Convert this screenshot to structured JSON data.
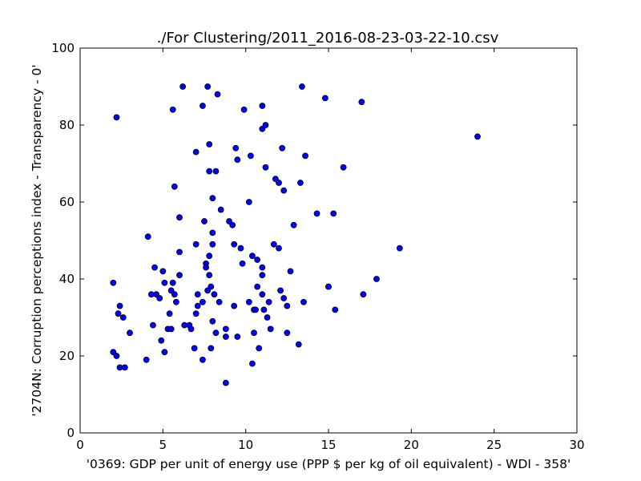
{
  "chart_data": {
    "type": "scatter",
    "title": "./For Clustering/2011_2016-08-23-03-22-10.csv",
    "xlabel": "'0369: GDP per unit of energy use  (PPP $ per kg of oil equivalent) - WDI - 358'",
    "ylabel": "'2704N: Corruption perceptions index - Transparency - 0'",
    "xlim": [
      0,
      30
    ],
    "ylim": [
      0,
      100
    ],
    "xticks": [
      0,
      5,
      10,
      15,
      20,
      25,
      30
    ],
    "yticks": [
      0,
      20,
      40,
      60,
      80,
      100
    ],
    "grid": false,
    "marker_color": "#0000ff",
    "series": [
      {
        "points": [
          [
            2.0,
            21
          ],
          [
            2.0,
            39
          ],
          [
            2.2,
            82
          ],
          [
            2.2,
            20
          ],
          [
            2.3,
            31
          ],
          [
            2.4,
            17
          ],
          [
            2.4,
            33
          ],
          [
            2.6,
            30
          ],
          [
            2.7,
            17
          ],
          [
            3.0,
            26
          ],
          [
            4.0,
            19
          ],
          [
            4.1,
            51
          ],
          [
            4.3,
            36
          ],
          [
            4.4,
            28
          ],
          [
            4.5,
            43
          ],
          [
            4.6,
            36
          ],
          [
            4.8,
            35
          ],
          [
            4.9,
            24
          ],
          [
            5.0,
            42
          ],
          [
            5.1,
            39
          ],
          [
            5.1,
            21
          ],
          [
            5.3,
            27
          ],
          [
            5.4,
            31
          ],
          [
            5.5,
            27
          ],
          [
            5.5,
            37
          ],
          [
            5.6,
            84
          ],
          [
            5.6,
            39
          ],
          [
            5.7,
            36
          ],
          [
            5.7,
            64
          ],
          [
            5.8,
            34
          ],
          [
            6.0,
            56
          ],
          [
            6.0,
            41
          ],
          [
            6.0,
            47
          ],
          [
            6.2,
            90
          ],
          [
            6.3,
            28
          ],
          [
            6.6,
            28
          ],
          [
            6.7,
            27
          ],
          [
            6.9,
            22
          ],
          [
            7.0,
            49
          ],
          [
            7.0,
            73
          ],
          [
            7.0,
            31
          ],
          [
            7.1,
            33
          ],
          [
            7.1,
            36
          ],
          [
            7.4,
            85
          ],
          [
            7.4,
            19
          ],
          [
            7.4,
            34
          ],
          [
            7.5,
            55
          ],
          [
            7.6,
            44
          ],
          [
            7.6,
            43
          ],
          [
            7.7,
            90
          ],
          [
            7.7,
            37
          ],
          [
            7.8,
            75
          ],
          [
            7.8,
            68
          ],
          [
            7.8,
            46
          ],
          [
            7.8,
            41
          ],
          [
            7.9,
            22
          ],
          [
            7.9,
            38
          ],
          [
            8.0,
            61
          ],
          [
            8.0,
            52
          ],
          [
            8.0,
            49
          ],
          [
            8.0,
            29
          ],
          [
            8.1,
            36
          ],
          [
            8.2,
            68
          ],
          [
            8.2,
            26
          ],
          [
            8.3,
            88
          ],
          [
            8.4,
            34
          ],
          [
            8.5,
            58
          ],
          [
            8.8,
            25
          ],
          [
            8.8,
            27
          ],
          [
            8.8,
            13
          ],
          [
            9.0,
            55
          ],
          [
            9.2,
            54
          ],
          [
            9.3,
            49
          ],
          [
            9.3,
            33
          ],
          [
            9.4,
            74
          ],
          [
            9.5,
            71
          ],
          [
            9.5,
            25
          ],
          [
            9.7,
            48
          ],
          [
            9.8,
            44
          ],
          [
            9.9,
            84
          ],
          [
            10.2,
            60
          ],
          [
            10.2,
            34
          ],
          [
            10.3,
            72
          ],
          [
            10.4,
            46
          ],
          [
            10.4,
            18
          ],
          [
            10.5,
            32
          ],
          [
            10.5,
            26
          ],
          [
            10.6,
            32
          ],
          [
            10.7,
            38
          ],
          [
            10.7,
            45
          ],
          [
            10.8,
            22
          ],
          [
            11.0,
            85
          ],
          [
            11.0,
            79
          ],
          [
            11.0,
            43
          ],
          [
            11.0,
            41
          ],
          [
            11.0,
            36
          ],
          [
            11.1,
            32
          ],
          [
            11.2,
            69
          ],
          [
            11.2,
            80
          ],
          [
            11.3,
            30
          ],
          [
            11.4,
            34
          ],
          [
            11.5,
            27
          ],
          [
            11.7,
            49
          ],
          [
            11.8,
            66
          ],
          [
            12.0,
            65
          ],
          [
            12.0,
            48
          ],
          [
            12.1,
            37
          ],
          [
            12.2,
            74
          ],
          [
            12.3,
            63
          ],
          [
            12.3,
            35
          ],
          [
            12.5,
            33
          ],
          [
            12.5,
            26
          ],
          [
            12.7,
            42
          ],
          [
            12.9,
            54
          ],
          [
            13.2,
            23
          ],
          [
            13.3,
            65
          ],
          [
            13.4,
            90
          ],
          [
            13.5,
            34
          ],
          [
            13.6,
            72
          ],
          [
            14.3,
            57
          ],
          [
            14.8,
            87
          ],
          [
            15.0,
            38
          ],
          [
            15.0,
            38
          ],
          [
            15.3,
            57
          ],
          [
            15.4,
            32
          ],
          [
            15.9,
            69
          ],
          [
            17.0,
            86
          ],
          [
            17.1,
            36
          ],
          [
            17.9,
            40
          ],
          [
            19.3,
            48
          ],
          [
            24.0,
            77
          ]
        ]
      }
    ]
  }
}
